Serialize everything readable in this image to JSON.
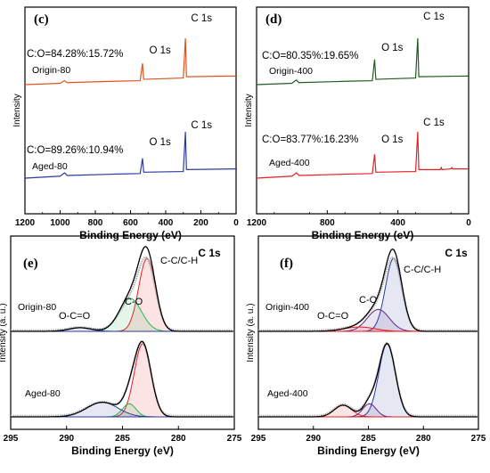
{
  "chart_data": [
    {
      "type": "line",
      "panel_label": "(c)",
      "xlabel": "Binding Energy (eV)",
      "ylabel": "Intensity",
      "xlim": [
        1200,
        0
      ],
      "xticks": [
        "1200",
        "1000",
        "800",
        "600",
        "400",
        "200",
        "0"
      ],
      "series": [
        {
          "name": "Origin-80",
          "color": "#e0531e",
          "ratio": "C:O=84.28%:15.72%",
          "peak_labels": [
            "O 1s",
            "C 1s"
          ],
          "baseline": 0.3,
          "points": [
            [
              1200,
              0.3
            ],
            [
              1000,
              0.32
            ],
            [
              975,
              0.36
            ],
            [
              960,
              0.33
            ],
            [
              700,
              0.35
            ],
            [
              545,
              0.36
            ],
            [
              532,
              0.62
            ],
            [
              525,
              0.38
            ],
            [
              300,
              0.4
            ],
            [
              288,
              1.0
            ],
            [
              282,
              0.42
            ],
            [
              0,
              0.43
            ]
          ]
        },
        {
          "name": "Aged-80",
          "color": "#2a3a9c",
          "ratio": "C:O=89.26%:10.94%",
          "peak_labels": [
            "O 1s",
            "C 1s"
          ],
          "baseline": 0.3,
          "points": [
            [
              1200,
              0.3
            ],
            [
              1000,
              0.33
            ],
            [
              975,
              0.38
            ],
            [
              960,
              0.34
            ],
            [
              700,
              0.36
            ],
            [
              545,
              0.37
            ],
            [
              532,
              0.6
            ],
            [
              525,
              0.39
            ],
            [
              300,
              0.4
            ],
            [
              288,
              1.0
            ],
            [
              282,
              0.43
            ],
            [
              0,
              0.44
            ]
          ]
        }
      ]
    },
    {
      "type": "line",
      "panel_label": "(d)",
      "xlabel": "Binding Energy (eV)",
      "ylabel": "Intensity",
      "xlim": [
        1200,
        0
      ],
      "xticks": [
        "1200",
        "800",
        "400",
        "0"
      ],
      "series": [
        {
          "name": "Origin-400",
          "color": "#1d5e1f",
          "ratio": "C:O=80.35%:19.65%",
          "peak_labels": [
            "O 1s",
            "C 1s"
          ],
          "baseline": 0.3,
          "points": [
            [
              1200,
              0.3
            ],
            [
              1000,
              0.32
            ],
            [
              975,
              0.37
            ],
            [
              960,
              0.33
            ],
            [
              700,
              0.35
            ],
            [
              545,
              0.36
            ],
            [
              532,
              0.68
            ],
            [
              525,
              0.38
            ],
            [
              300,
              0.4
            ],
            [
              288,
              1.0
            ],
            [
              282,
              0.42
            ],
            [
              0,
              0.43
            ]
          ]
        },
        {
          "name": "Aged-400",
          "color": "#e51f24",
          "ratio": "C:O=83.77%:16.23%",
          "peak_labels": [
            "O 1s",
            "C 1s"
          ],
          "baseline": 0.3,
          "points": [
            [
              1200,
              0.3
            ],
            [
              1000,
              0.33
            ],
            [
              975,
              0.38
            ],
            [
              960,
              0.34
            ],
            [
              700,
              0.36
            ],
            [
              545,
              0.37
            ],
            [
              532,
              0.66
            ],
            [
              525,
              0.39
            ],
            [
              300,
              0.4
            ],
            [
              288,
              1.0
            ],
            [
              282,
              0.43
            ],
            [
              160,
              0.43
            ],
            [
              155,
              0.46
            ],
            [
              150,
              0.43
            ],
            [
              100,
              0.44
            ],
            [
              95,
              0.46
            ],
            [
              90,
              0.44
            ],
            [
              0,
              0.44
            ]
          ]
        }
      ]
    },
    {
      "type": "line",
      "panel_label": "(e)",
      "title": "C 1s",
      "xlabel": "Binding Energy (eV)",
      "ylabel": "Intensity (a. u.)",
      "xlim": [
        295,
        275
      ],
      "xticks": [
        "295",
        "290",
        "285",
        "280",
        "275"
      ],
      "spectra": [
        {
          "name": "Origin-80",
          "components": [
            {
              "name": "C-C/C-H",
              "center": 282.8,
              "height": 1.0,
              "sigma": 0.75,
              "color": "#e51f24"
            },
            {
              "name": "C-O",
              "center": 284.3,
              "height": 0.45,
              "sigma": 1.0,
              "color": "#22b84a"
            },
            {
              "name": "O-C=O",
              "center": 288.8,
              "height": 0.05,
              "sigma": 1.0,
              "color": "#2a3a9c"
            }
          ]
        },
        {
          "name": "Aged-80",
          "components": [
            {
              "name": "C-C/C-H",
              "center": 283.2,
              "height": 1.0,
              "sigma": 0.75,
              "color": "#e51f24"
            },
            {
              "name": "C-O",
              "center": 284.4,
              "height": 0.18,
              "sigma": 0.6,
              "color": "#22b84a"
            },
            {
              "name": "O-C=O",
              "center": 286.8,
              "height": 0.2,
              "sigma": 1.4,
              "color": "#2a3a9c"
            }
          ]
        }
      ]
    },
    {
      "type": "line",
      "panel_label": "(f)",
      "title": "C 1s",
      "xlabel": "Binding Energy (eV)",
      "ylabel": "Intensity (a. u.)",
      "xlim": [
        295,
        275
      ],
      "xticks": [
        "295",
        "290",
        "285",
        "280",
        "275"
      ],
      "spectra": [
        {
          "name": "Origin-400",
          "components": [
            {
              "name": "C-C/C-H",
              "center": 282.7,
              "height": 1.0,
              "sigma": 0.75,
              "color": "#2a3a9c"
            },
            {
              "name": "C-O",
              "center": 284.1,
              "height": 0.3,
              "sigma": 1.0,
              "color": "#5b2a86"
            },
            {
              "name": "O-C=O",
              "center": 285.8,
              "height": 0.06,
              "sigma": 1.4,
              "color": "#e51f24"
            }
          ]
        },
        {
          "name": "Aged-400",
          "components": [
            {
              "name": "C-C/C-H",
              "center": 283.3,
              "height": 1.0,
              "sigma": 0.75,
              "color": "#2a3a9c"
            },
            {
              "name": "C-O",
              "center": 284.9,
              "height": 0.18,
              "sigma": 0.6,
              "color": "#5b2a86"
            },
            {
              "name": "O-C=O",
              "center": 287.3,
              "height": 0.16,
              "sigma": 0.8,
              "color": "#e51f24"
            }
          ]
        }
      ]
    }
  ]
}
